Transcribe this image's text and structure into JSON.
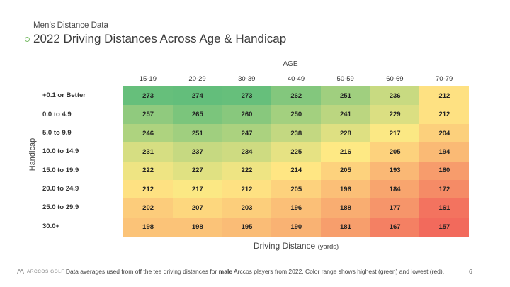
{
  "header": {
    "eyebrow": "Men’s Distance Data",
    "title": "2022 Driving Distances Across Age & Handicap"
  },
  "chart_data": {
    "type": "heatmap",
    "title": "2022 Driving Distances Across Age & Handicap",
    "column_axis_label": "AGE",
    "row_axis_label": "Handicap",
    "xlabel": "Driving Distance",
    "xlabel_unit": "(yards)",
    "columns": [
      "15-19",
      "20-29",
      "30-39",
      "40-49",
      "50-59",
      "60-69",
      "70-79"
    ],
    "rows": [
      "+0.1 or Better",
      "0.0 to 4.9",
      "5.0 to 9.9",
      "10.0 to 14.9",
      "15.0 to 19.9",
      "20.0 to 24.9",
      "25.0 to 29.9",
      "30.0+"
    ],
    "values": [
      [
        273,
        274,
        273,
        262,
        251,
        236,
        212
      ],
      [
        257,
        265,
        260,
        250,
        241,
        229,
        212
      ],
      [
        246,
        251,
        247,
        238,
        228,
        217,
        204
      ],
      [
        231,
        237,
        234,
        225,
        216,
        205,
        194
      ],
      [
        222,
        227,
        222,
        214,
        205,
        193,
        180
      ],
      [
        212,
        217,
        212,
        205,
        196,
        184,
        172
      ],
      [
        202,
        207,
        203,
        196,
        188,
        177,
        161
      ],
      [
        198,
        198,
        195,
        190,
        181,
        167,
        157
      ]
    ],
    "color_scale": {
      "high": "#63be7b",
      "mid": "#ffe984",
      "low": "#f26a5c"
    },
    "value_range": [
      157,
      274
    ]
  },
  "footer": {
    "logo": "ARCCOS GOLF",
    "note": "Data averages used from off the tee driving distances for male Arccos players from 2022. Color range shows highest (green) and lowest (red).",
    "page": "6"
  }
}
